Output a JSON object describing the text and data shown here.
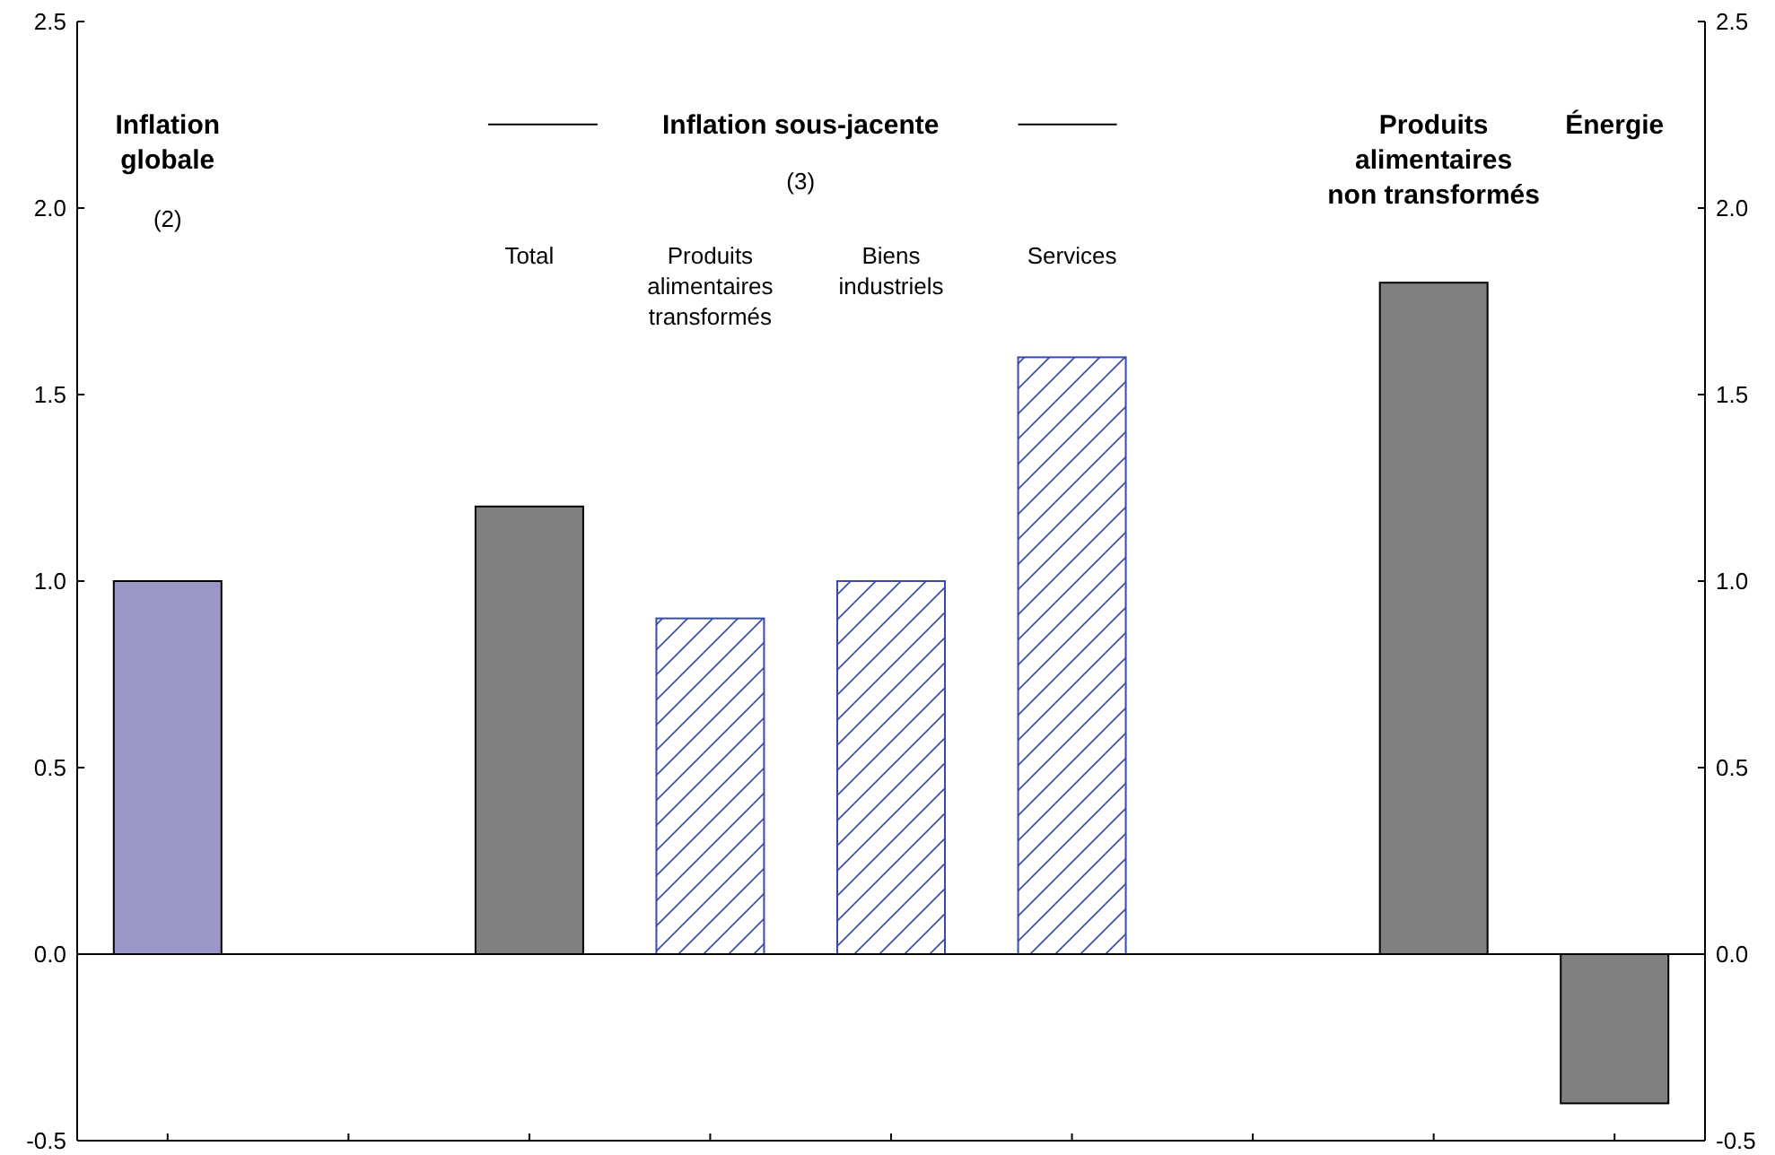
{
  "chart_data": {
    "type": "bar",
    "categories": [
      "Inflation globale",
      null,
      "Total",
      "Produits alimentaires transformés",
      "Biens industriels",
      "Services",
      null,
      "Produits alimentaires non transformés",
      "Énergie"
    ],
    "values": [
      1.0,
      null,
      1.2,
      0.9,
      1.0,
      1.6,
      null,
      1.8,
      -0.4
    ],
    "colors": [
      "#9c97c9",
      null,
      "#808080",
      "#3a4aa8",
      "#3a4aa8",
      "#3a4aa8",
      null,
      "#808080",
      "#808080"
    ],
    "ylim": [
      -0.5,
      2.5
    ],
    "yticks": [
      -0.5,
      {
        "value": 0,
        "label": "0.0"
      },
      0.5,
      {
        "value": 1,
        "label": "1.0"
      },
      1.5,
      {
        "value": 2,
        "label": "2.0"
      },
      2.5
    ],
    "y2lim": [
      -0.5,
      2.5
    ],
    "y2ticks": [
      -0.5,
      {
        "value": 0,
        "label": "0.0"
      },
      0.5,
      {
        "value": 1,
        "label": "1.0"
      },
      1.5,
      {
        "value": 2,
        "label": "2.0"
      },
      2.5
    ],
    "annotations": [
      "(2)",
      "Inflation sous-jacente",
      "(3)"
    ],
    "ref_lines": [
      {
        "axis": "y",
        "value": 0
      }
    ]
  }
}
